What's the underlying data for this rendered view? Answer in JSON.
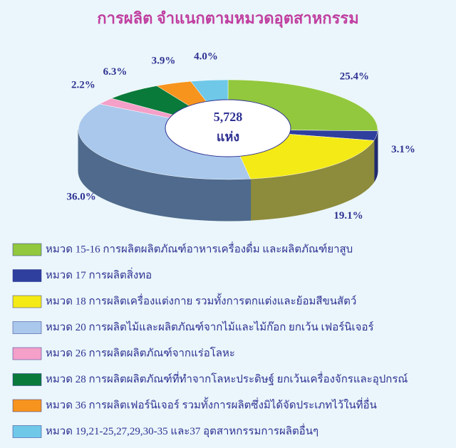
{
  "chart_data": {
    "type": "pie",
    "title": "การผลิต จำแนกตามหมวดอุตสาหกรรม",
    "center_text": "5,728",
    "center_unit": "แห่ง",
    "categories": [
      "หมวด 15-16 การผลิตผลิตภัณฑ์อาหารเครื่องดื่ม และผลิตภัณฑ์ยาสูบ",
      "หมวด 17 การผลิตสิ่งทอ",
      "หมวด 18 การผลิตเครื่องแต่งกาย รวมทั้งการตกแต่งและย้อมสีขนสัตว์",
      "หมวด 20 การผลิตไม้และผลิตภัณฑ์จากไม้และไม้ก๊อก ยกเว้น เฟอร์นิเจอร์",
      "หมวด 26 การผลิตผลิตภัณฑ์จากแร่อโลหะ",
      "หมวด 28 การผลิตผลิตภัณฑ์ที่ทำจากโลหะประดิษฐ์ ยกเว้นเครื่องจักรและอุปกรณ์",
      "หมวด 36 การผลิตเฟอร์นิเจอร์ รวมทั้งการผลิตซึ่งมิได้จัดประเภทไว้ในที่อื่น",
      "หมวด 19,21-25,27,29,30-35 และ37 อุตสาหกรรมการผลิตอื่นๆ"
    ],
    "values": [
      25.4,
      3.1,
      19.1,
      36.0,
      2.2,
      6.3,
      3.9,
      4.0
    ],
    "value_labels": [
      "25.4%",
      "3.1%",
      "19.1%",
      "36.0%",
      "2.2%",
      "6.3%",
      "3.9%",
      "4.0%"
    ],
    "colors": [
      "#92c83e",
      "#2e3f9e",
      "#f4ea16",
      "#a9c8ec",
      "#f4a0c8",
      "#0a7a3a",
      "#f7941d",
      "#6fc8e8"
    ],
    "side_colors": [
      "#7d8a2c",
      "#1f2a70",
      "#8d8b3c",
      "#4f6a8c",
      "#b07090",
      "#08502a",
      "#b06a10",
      "#4a90aa"
    ]
  }
}
